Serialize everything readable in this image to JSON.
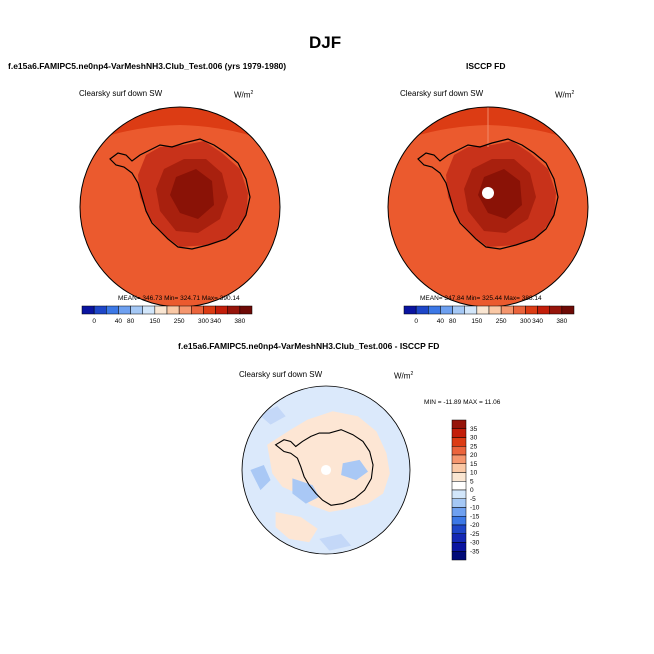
{
  "page": {
    "title": "DJF",
    "left_panel_title": "f.e15a6.FAMIPC5.ne0np4-VarMeshNH3.Club_Test.006 (yrs 1979-1980)",
    "right_panel_title": "ISCCP FD",
    "diff_panel_title": "f.e15a6.FAMIPC5.ne0np4-VarMeshNH3.Club_Test.006 - ISCCP FD"
  },
  "chart_data": [
    {
      "type": "heatmap",
      "projection": "polar stereographic (south pole)",
      "title": "Clearsky surf down SW",
      "units": "W/m",
      "units_exp": "2",
      "stats_text": "MEAN= 346.73  Min= 324.71  Max= 390.14",
      "stats": {
        "mean": 346.73,
        "min": 324.71,
        "max": 390.14
      },
      "colorbar": {
        "orientation": "horizontal",
        "labels": [
          "0",
          "40",
          "80",
          "150",
          "250",
          "300",
          "340",
          "380"
        ],
        "colors": [
          "#0a14a0",
          "#1e46c8",
          "#3c78e6",
          "#6ea0f0",
          "#a5c8f5",
          "#d2e6fa",
          "#fae6d2",
          "#fac8a5",
          "#f5966e",
          "#eb643c",
          "#dc3c14",
          "#c31e0a",
          "#96140a",
          "#6e0a06"
        ]
      }
    },
    {
      "type": "heatmap",
      "projection": "polar stereographic (south pole)",
      "title": "Clearsky surf down SW",
      "units": "W/m",
      "units_exp": "2",
      "stats_text": "MEAN= 347.84  Min= 325.44  Max= 388.14",
      "stats": {
        "mean": 347.84,
        "min": 325.44,
        "max": 388.14
      },
      "colorbar": {
        "orientation": "horizontal",
        "labels": [
          "0",
          "40",
          "80",
          "150",
          "250",
          "300",
          "340",
          "380"
        ],
        "colors": [
          "#0a14a0",
          "#1e46c8",
          "#3c78e6",
          "#6ea0f0",
          "#a5c8f5",
          "#d2e6fa",
          "#fae6d2",
          "#fac8a5",
          "#f5966e",
          "#eb643c",
          "#dc3c14",
          "#c31e0a",
          "#96140a",
          "#6e0a06"
        ]
      }
    },
    {
      "type": "heatmap",
      "projection": "polar stereographic (south pole)",
      "title": "Clearsky surf down SW",
      "units": "W/m",
      "units_exp": "2",
      "stats_text": "MIN = -11.89 MAX =  11.06",
      "stats": {
        "min": -11.89,
        "max": 11.06
      },
      "colorbar": {
        "orientation": "vertical",
        "labels": [
          "35",
          "30",
          "25",
          "20",
          "15",
          "10",
          "5",
          "0",
          "-5",
          "-10",
          "-15",
          "-20",
          "-25",
          "-30",
          "-35"
        ],
        "colors": [
          "#96140a",
          "#c31e0a",
          "#dc3c14",
          "#eb643c",
          "#f5966e",
          "#fac8a5",
          "#fae6d2",
          "#ffffff",
          "#d2e6fa",
          "#a5c8f5",
          "#6ea0f0",
          "#3c78e6",
          "#1e46c8",
          "#1428b4",
          "#0a14a0",
          "#000a78"
        ]
      }
    }
  ]
}
